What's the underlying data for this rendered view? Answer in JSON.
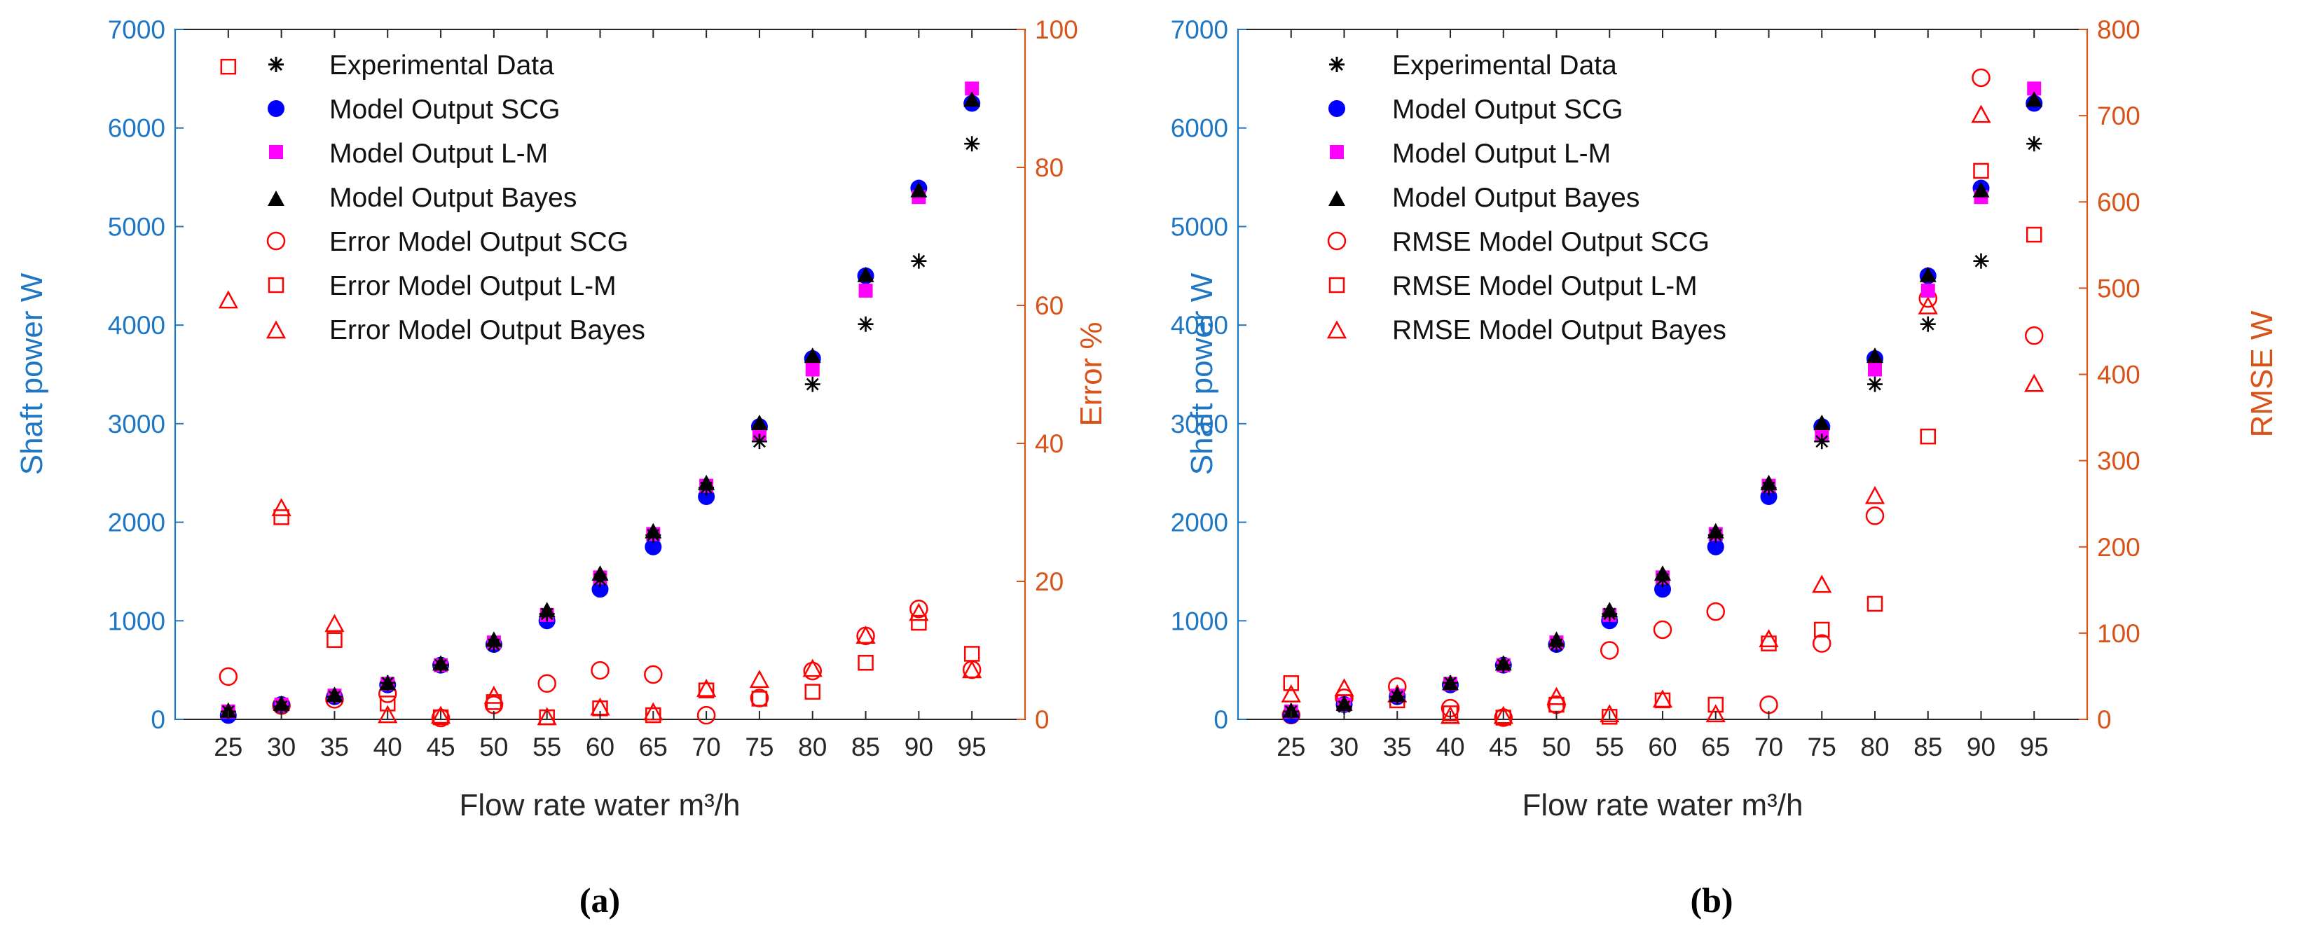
{
  "colors": {
    "left_axis": "#1f77c4",
    "right_axis": "#d95319",
    "experimental": "#000000",
    "scg": "#0000ff",
    "lm": "#ff00ff",
    "bayes": "#000000",
    "error": "#ff0000"
  },
  "chart_data": [
    {
      "type": "scatter",
      "caption": "(a)",
      "xlabel": "Flow rate water m³/h",
      "ylabel_left": "Shaft power W",
      "ylabel_right": "Error %",
      "x": [
        25,
        30,
        35,
        40,
        45,
        50,
        55,
        60,
        65,
        70,
        75,
        80,
        85,
        90,
        95
      ],
      "xlim": [
        20,
        100
      ],
      "ylim_left": [
        0,
        7000
      ],
      "ylim_right": [
        0,
        100
      ],
      "yticks_left": [
        0,
        1000,
        2000,
        3000,
        4000,
        5000,
        6000,
        7000
      ],
      "yticks_right": [
        0,
        20,
        40,
        60,
        80,
        100
      ],
      "legend": [
        "Experimental Data",
        "Model Output SCG",
        "Model Output L-M",
        "Model Output Bayes",
        "Error Model Output SCG",
        "Error Model Output L-M",
        "Error Model Output Bayes"
      ],
      "series": [
        {
          "name": "Experimental Data",
          "axis": "left",
          "marker": "asterisk",
          "values": [
            80,
            130,
            230,
            370,
            550,
            760,
            1070,
            1420,
            1870,
            2350,
            2820,
            3400,
            4010,
            4650,
            5840
          ]
        },
        {
          "name": "Model Output SCG",
          "axis": "left",
          "marker": "circle-filled",
          "values": [
            40,
            150,
            230,
            350,
            550,
            760,
            1000,
            1320,
            1750,
            2260,
            2970,
            3660,
            4500,
            5390,
            6250
          ]
        },
        {
          "name": "Model Output L-M",
          "axis": "left",
          "marker": "square-filled",
          "values": [
            80,
            150,
            240,
            360,
            550,
            780,
            1060,
            1440,
            1880,
            2370,
            2900,
            3550,
            4350,
            5300,
            6400
          ]
        },
        {
          "name": "Model Output Bayes",
          "axis": "left",
          "marker": "triangle-filled",
          "values": [
            80,
            150,
            240,
            360,
            560,
            800,
            1100,
            1470,
            1900,
            2390,
            3000,
            3680,
            4500,
            5360,
            6280
          ]
        },
        {
          "name": "Error Model Output SCG",
          "axis": "right",
          "marker": "circle-open",
          "values": [
            6.2,
            2.0,
            2.9,
            3.7,
            0.2,
            2.1,
            5.2,
            7.1,
            6.5,
            0.6,
            3.1,
            7.0,
            12.1,
            16.0,
            7.2
          ]
        },
        {
          "name": "Error Model Output L-M",
          "axis": "right",
          "marker": "square-open",
          "values": [
            94.6,
            29.3,
            11.5,
            2.3,
            0.3,
            2.5,
            0.3,
            1.6,
            0.6,
            4.2,
            3.0,
            4.0,
            8.2,
            14.0,
            9.5
          ]
        },
        {
          "name": "Error Model Output Bayes",
          "axis": "right",
          "marker": "triangle-open",
          "values": [
            60.6,
            30.5,
            13.7,
            0.5,
            0.4,
            3.3,
            0.2,
            1.6,
            0.9,
            4.3,
            5.6,
            7.2,
            12.0,
            15.3,
            7.0
          ]
        }
      ]
    },
    {
      "type": "scatter",
      "caption": "(b)",
      "xlabel": "Flow rate water m³/h",
      "ylabel_left": "Shaft power W",
      "ylabel_right": "RMSE W",
      "x": [
        25,
        30,
        35,
        40,
        45,
        50,
        55,
        60,
        65,
        70,
        75,
        80,
        85,
        90,
        95
      ],
      "xlim": [
        20,
        100
      ],
      "ylim_left": [
        0,
        7000
      ],
      "ylim_right": [
        0,
        800
      ],
      "yticks_left": [
        0,
        1000,
        2000,
        3000,
        4000,
        5000,
        6000,
        7000
      ],
      "yticks_right": [
        0,
        100,
        200,
        300,
        400,
        500,
        600,
        700,
        800
      ],
      "legend": [
        "Experimental Data",
        "Model Output SCG",
        "Model Output L-M",
        "Model Output Bayes",
        "RMSE Model Output SCG",
        "RMSE Model Output L-M",
        "RMSE Model Output Bayes"
      ],
      "series": [
        {
          "name": "Experimental Data",
          "axis": "left",
          "marker": "asterisk",
          "values": [
            80,
            130,
            230,
            370,
            550,
            760,
            1070,
            1420,
            1870,
            2350,
            2820,
            3400,
            4010,
            4650,
            5840
          ]
        },
        {
          "name": "Model Output SCG",
          "axis": "left",
          "marker": "circle-filled",
          "values": [
            40,
            150,
            230,
            350,
            550,
            760,
            1000,
            1320,
            1750,
            2260,
            2970,
            3660,
            4500,
            5390,
            6250
          ]
        },
        {
          "name": "Model Output L-M",
          "axis": "left",
          "marker": "square-filled",
          "values": [
            80,
            150,
            240,
            360,
            550,
            780,
            1060,
            1440,
            1880,
            2370,
            2900,
            3550,
            4350,
            5300,
            6400
          ]
        },
        {
          "name": "Model Output Bayes",
          "axis": "left",
          "marker": "triangle-filled",
          "values": [
            80,
            150,
            240,
            360,
            560,
            800,
            1100,
            1470,
            1900,
            2390,
            3000,
            3680,
            4500,
            5360,
            6280
          ]
        },
        {
          "name": "RMSE Model Output SCG",
          "axis": "right",
          "marker": "circle-open",
          "values": [
            5,
            25,
            38,
            13,
            2,
            17,
            80,
            104,
            125,
            17,
            88,
            236,
            488,
            744,
            445
          ]
        },
        {
          "name": "RMSE Model Output L-M",
          "axis": "right",
          "marker": "square-open",
          "values": [
            42,
            20,
            22,
            7,
            2,
            17,
            3,
            22,
            17,
            88,
            104,
            134,
            328,
            636,
            562
          ]
        },
        {
          "name": "RMSE Model Output Bayes",
          "axis": "right",
          "marker": "triangle-open",
          "values": [
            28,
            35,
            28,
            3,
            3,
            25,
            5,
            22,
            5,
            92,
            155,
            258,
            478,
            700,
            388
          ]
        }
      ]
    }
  ]
}
